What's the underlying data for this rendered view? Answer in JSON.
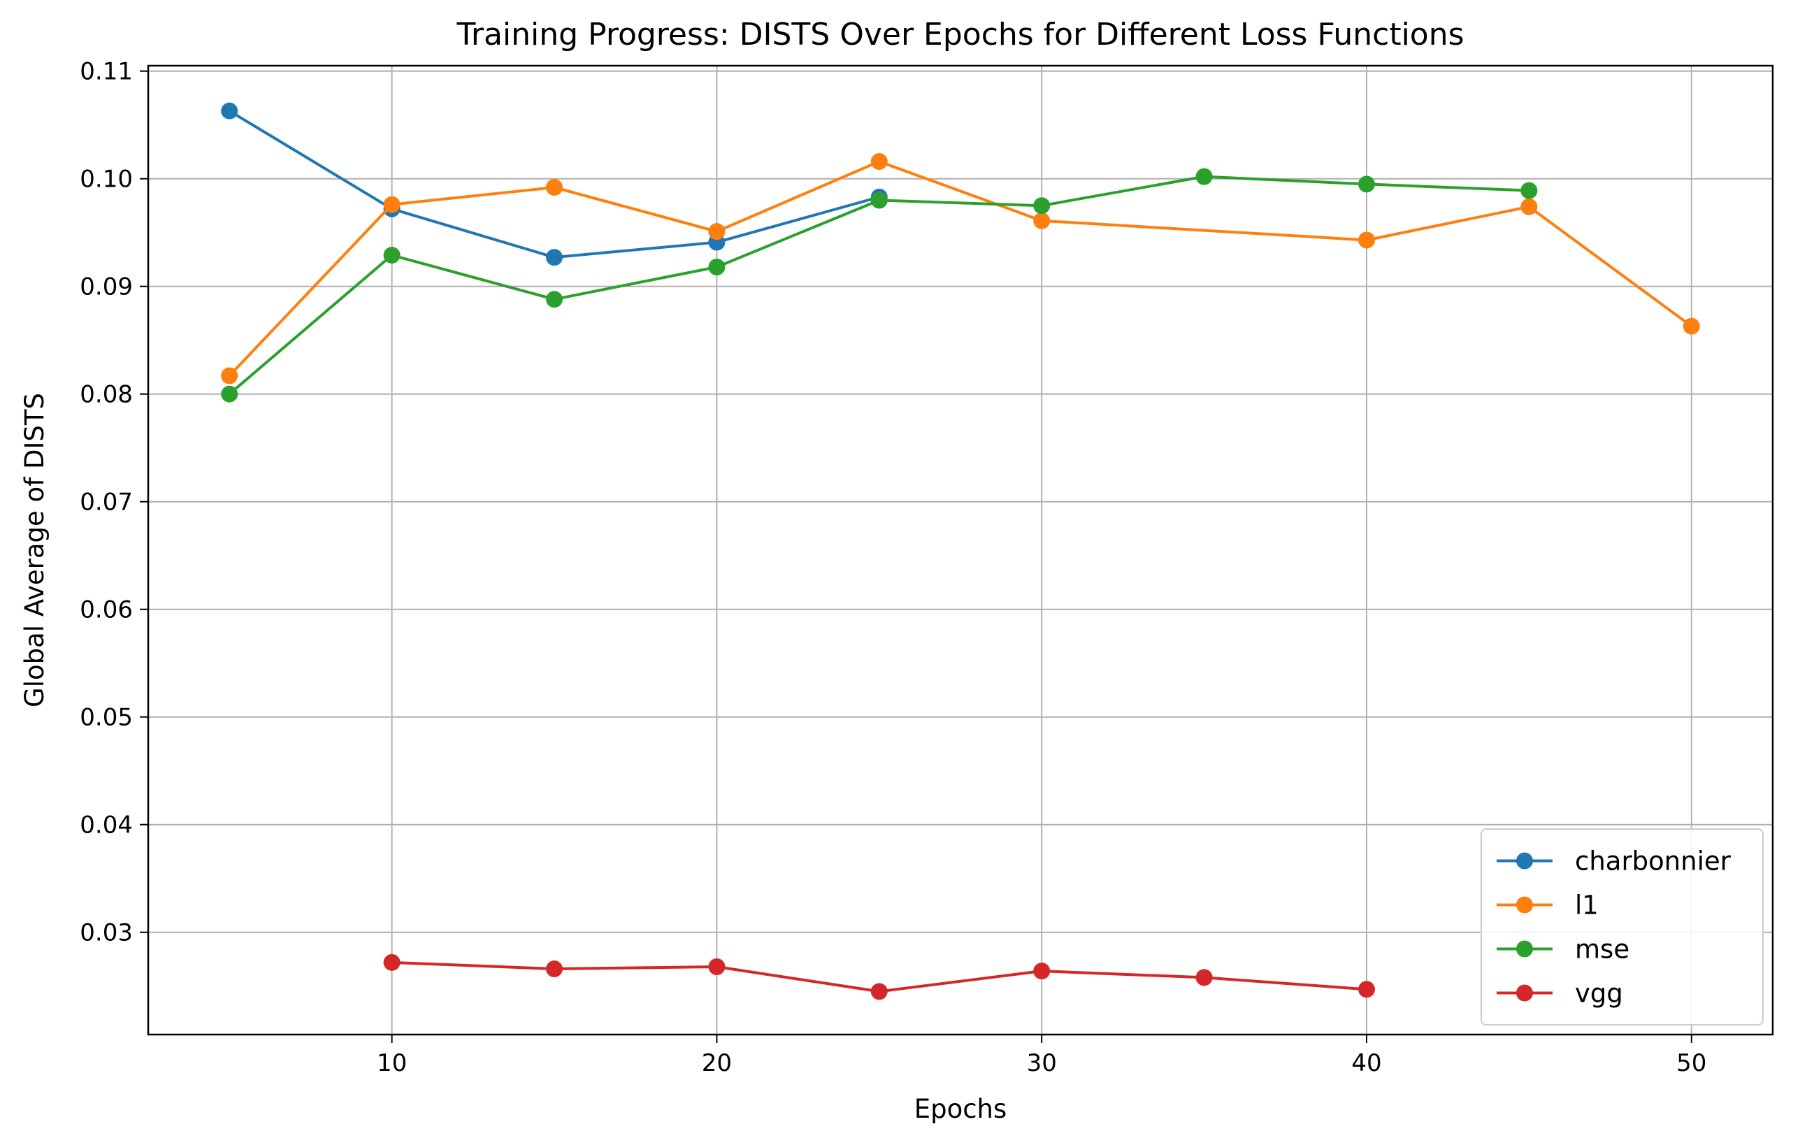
{
  "chart_data": {
    "type": "line",
    "title": "Training Progress: DISTS Over Epochs for Different Loss Functions",
    "xlabel": "Epochs",
    "ylabel": "Global Average of DISTS",
    "xlim": [
      2.5,
      52.5
    ],
    "ylim": [
      0.0205,
      0.1105
    ],
    "x_ticks": [
      10,
      20,
      30,
      40,
      50
    ],
    "x_tick_labels": [
      "10",
      "20",
      "30",
      "40",
      "50"
    ],
    "y_ticks": [
      0.03,
      0.04,
      0.05,
      0.06,
      0.07,
      0.08,
      0.09,
      0.1,
      0.11
    ],
    "y_tick_labels": [
      "0.03",
      "0.04",
      "0.05",
      "0.06",
      "0.07",
      "0.08",
      "0.09",
      "0.10",
      "0.11"
    ],
    "grid": true,
    "legend_position": "bottom-right",
    "series": [
      {
        "name": "charbonnier",
        "color": "#1f77b4",
        "x": [
          5,
          10,
          15,
          20,
          25
        ],
        "values": [
          0.1063,
          0.0972,
          0.0927,
          0.0941,
          0.0983
        ]
      },
      {
        "name": "l1",
        "color": "#ff7f0e",
        "x": [
          5,
          10,
          15,
          20,
          25,
          30,
          40,
          45,
          50
        ],
        "values": [
          0.0817,
          0.0976,
          0.0992,
          0.0951,
          0.1016,
          0.0961,
          0.0943,
          0.0974,
          0.0863
        ]
      },
      {
        "name": "mse",
        "color": "#2ca02c",
        "x": [
          5,
          10,
          15,
          20,
          25,
          30,
          35,
          40,
          45
        ],
        "values": [
          0.08,
          0.0929,
          0.0888,
          0.0918,
          0.098,
          0.0975,
          0.1002,
          0.0995,
          0.0989
        ]
      },
      {
        "name": "vgg",
        "color": "#d62728",
        "x": [
          10,
          15,
          20,
          25,
          30,
          35,
          40
        ],
        "values": [
          0.0272,
          0.0266,
          0.0268,
          0.0245,
          0.0264,
          0.0258,
          0.0247
        ]
      }
    ]
  }
}
